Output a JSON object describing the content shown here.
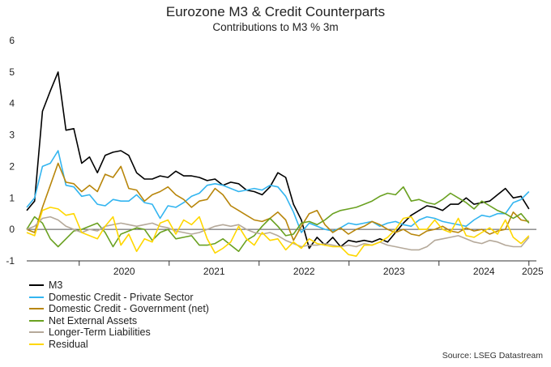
{
  "header": {
    "title": "Eurozone M3 & Credit Counterparts",
    "subtitle": "Contributions to M3 % 3m"
  },
  "source": "Source: LSEG Datastream",
  "chart_data": {
    "type": "line",
    "title": "Eurozone M3 & Credit Counterparts",
    "subtitle": "Contributions to M3 % 3m",
    "xlabel": "",
    "ylabel": "",
    "ylim": [
      -1,
      6
    ],
    "yticks": [
      "-1",
      "0",
      "1",
      "2",
      "3",
      "4",
      "5",
      "6"
    ],
    "xticks": [
      "2020",
      "2021",
      "2022",
      "2023",
      "2024",
      "2025"
    ],
    "x_start": "2019-06",
    "x_end": "2025-01",
    "grid": false,
    "legend_position": "bottom-left",
    "series": [
      {
        "name": "M3",
        "color": "#000000",
        "values": [
          0.6,
          0.9,
          3.75,
          4.4,
          5.0,
          3.15,
          3.2,
          2.1,
          2.3,
          1.8,
          2.35,
          2.45,
          2.5,
          2.35,
          1.8,
          1.6,
          1.6,
          1.7,
          1.65,
          1.85,
          1.7,
          1.7,
          1.65,
          1.55,
          1.6,
          1.4,
          1.5,
          1.45,
          1.25,
          1.2,
          1.1,
          1.35,
          1.8,
          1.65,
          0.8,
          0.3,
          -0.6,
          -0.25,
          -0.5,
          -0.25,
          -0.55,
          -0.35,
          -0.4,
          -0.35,
          -0.4,
          -0.3,
          -0.4,
          -0.1,
          0.2,
          0.45,
          0.6,
          0.75,
          0.7,
          0.6,
          0.8,
          0.8,
          1.0,
          0.8,
          0.85,
          0.9,
          1.1,
          1.3,
          1.0,
          1.05,
          0.65
        ]
      },
      {
        "name": "Domestic Credit - Private Sector",
        "color": "#33b5f0",
        "values": [
          0.7,
          1.0,
          2.0,
          2.1,
          2.5,
          1.4,
          1.35,
          1.05,
          1.1,
          0.8,
          0.75,
          0.95,
          0.9,
          0.9,
          1.1,
          0.85,
          0.8,
          0.35,
          0.75,
          0.7,
          0.85,
          1.05,
          1.15,
          1.4,
          1.45,
          1.4,
          1.3,
          1.2,
          1.25,
          1.3,
          1.25,
          1.4,
          1.35,
          1.05,
          0.55,
          -0.1,
          0.2,
          0.1,
          0.0,
          -0.05,
          0.05,
          0.2,
          0.15,
          0.2,
          0.25,
          0.1,
          0.2,
          0.25,
          0.15,
          0.1,
          0.3,
          0.4,
          0.35,
          0.25,
          0.2,
          0.15,
          0.1,
          0.3,
          0.45,
          0.4,
          0.5,
          0.5,
          0.85,
          0.95,
          1.2
        ]
      },
      {
        "name": "Domestic Credit - Government (net)",
        "color": "#b8860b",
        "values": [
          0.0,
          -0.1,
          0.7,
          1.4,
          2.1,
          1.5,
          1.45,
          1.2,
          1.4,
          1.2,
          1.75,
          1.65,
          2.0,
          1.3,
          1.25,
          0.9,
          1.1,
          1.2,
          1.35,
          1.1,
          0.95,
          0.7,
          0.9,
          0.95,
          1.3,
          1.1,
          0.75,
          0.6,
          0.45,
          0.3,
          0.25,
          0.35,
          0.55,
          0.3,
          -0.35,
          0.1,
          0.5,
          0.6,
          0.15,
          -0.1,
          0.05,
          -0.15,
          0.0,
          0.1,
          0.25,
          0.15,
          0.0,
          -0.1,
          0.0,
          -0.15,
          -0.2,
          -0.05,
          0.0,
          0.1,
          -0.05,
          -0.1,
          0.05,
          -0.05,
          0.0,
          -0.15,
          -0.05,
          0.0,
          0.55,
          0.3,
          0.25
        ]
      },
      {
        "name": "Net External Assets",
        "color": "#6aa121",
        "values": [
          0.0,
          0.4,
          0.2,
          -0.3,
          -0.55,
          -0.3,
          -0.05,
          0.0,
          0.1,
          0.2,
          -0.1,
          -0.55,
          -0.15,
          -0.05,
          0.05,
          0.0,
          -0.35,
          -0.1,
          0.0,
          -0.3,
          -0.25,
          -0.2,
          -0.5,
          -0.5,
          -0.45,
          -0.3,
          -0.5,
          -0.7,
          -0.35,
          -0.2,
          0.1,
          0.35,
          0.1,
          -0.2,
          -0.15,
          0.2,
          0.25,
          0.15,
          0.3,
          0.5,
          0.6,
          0.65,
          0.7,
          0.8,
          0.9,
          1.05,
          1.15,
          1.1,
          1.35,
          0.9,
          0.95,
          0.85,
          0.8,
          0.95,
          1.15,
          1.0,
          0.85,
          0.65,
          0.9,
          0.75,
          0.6,
          0.5,
          0.35,
          0.5,
          0.2
        ]
      },
      {
        "name": "Longer-Term Liabilities",
        "color": "#b5a99a",
        "values": [
          0.0,
          0.1,
          0.35,
          0.4,
          0.3,
          0.1,
          0.0,
          -0.1,
          0.0,
          -0.05,
          0.1,
          0.15,
          0.2,
          0.15,
          0.1,
          0.15,
          0.2,
          0.1,
          0.05,
          -0.05,
          -0.1,
          -0.15,
          -0.1,
          0.0,
          0.1,
          0.15,
          0.1,
          0.15,
          0.0,
          -0.1,
          -0.15,
          -0.1,
          -0.2,
          -0.35,
          -0.45,
          -0.55,
          -0.5,
          -0.5,
          -0.45,
          -0.5,
          -0.55,
          -0.5,
          -0.55,
          -0.45,
          -0.5,
          -0.4,
          -0.5,
          -0.55,
          -0.6,
          -0.65,
          -0.65,
          -0.55,
          -0.35,
          -0.3,
          -0.25,
          -0.2,
          -0.3,
          -0.4,
          -0.45,
          -0.35,
          -0.4,
          -0.5,
          -0.55,
          -0.55,
          -0.25
        ]
      },
      {
        "name": "Residual",
        "color": "#ffd700",
        "values": [
          -0.1,
          -0.2,
          0.6,
          0.7,
          0.65,
          0.45,
          0.5,
          -0.1,
          -0.2,
          -0.3,
          0.1,
          0.4,
          -0.5,
          -0.15,
          -0.7,
          -0.3,
          -0.4,
          0.2,
          0.3,
          -0.15,
          0.3,
          0.15,
          0.4,
          -0.3,
          -0.75,
          -0.6,
          -0.4,
          0.1,
          -0.3,
          -0.5,
          -0.1,
          -0.35,
          -0.3,
          -0.65,
          -0.4,
          -0.6,
          -0.3,
          -0.45,
          -0.5,
          -0.55,
          -0.55,
          -0.8,
          -0.85,
          -0.5,
          -0.5,
          -0.4,
          -0.25,
          0.0,
          0.35,
          0.4,
          0.0,
          0.0,
          0.3,
          0.0,
          -0.1,
          0.35,
          -0.2,
          -0.25,
          -0.1,
          0.05,
          -0.15,
          0.3,
          -0.25,
          -0.45,
          -0.2
        ]
      }
    ]
  }
}
